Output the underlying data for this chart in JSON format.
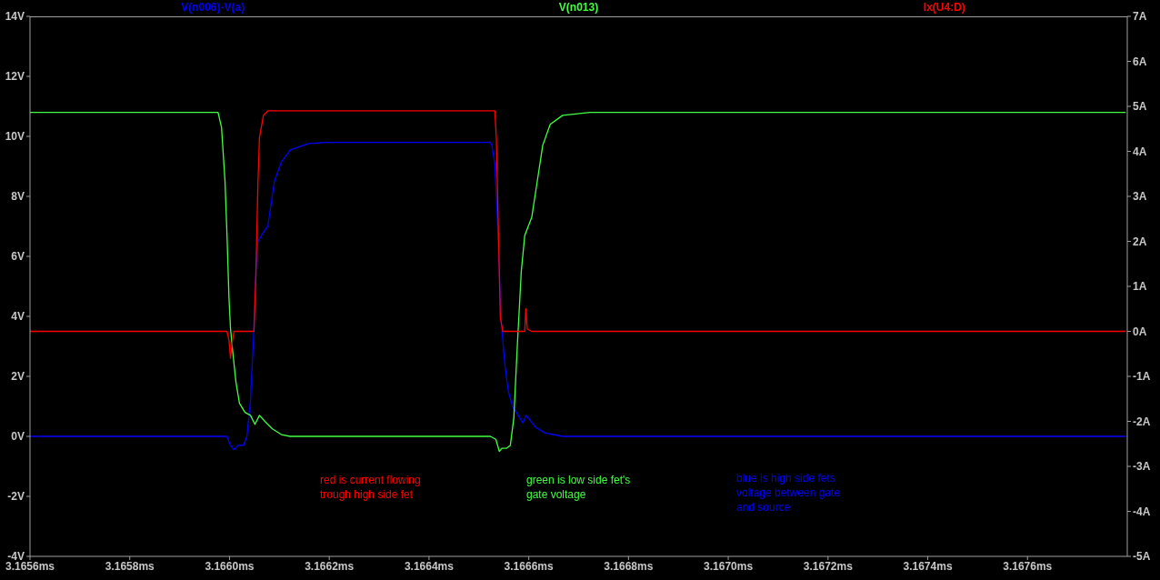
{
  "chart_data": {
    "type": "line",
    "xlim": [
      3.1656,
      3.1678
    ],
    "xticks": [
      {
        "value": 3.1656,
        "label": "3.1656ms"
      },
      {
        "value": 3.1658,
        "label": "3.1658ms"
      },
      {
        "value": 3.166,
        "label": "3.1660ms"
      },
      {
        "value": 3.1662,
        "label": "3.1662ms"
      },
      {
        "value": 3.1664,
        "label": "3.1664ms"
      },
      {
        "value": 3.1666,
        "label": "3.1666ms"
      },
      {
        "value": 3.1668,
        "label": "3.1668ms"
      },
      {
        "value": 3.167,
        "label": "3.1670ms"
      },
      {
        "value": 3.1672,
        "label": "3.1672ms"
      },
      {
        "value": 3.1674,
        "label": "3.1674ms"
      },
      {
        "value": 3.1676,
        "label": "3.1676ms"
      }
    ],
    "ylim": [
      -4,
      14
    ],
    "yticks": [
      {
        "value": -4,
        "label": "-4V"
      },
      {
        "value": -2,
        "label": "-2V"
      },
      {
        "value": 0,
        "label": "0V"
      },
      {
        "value": 2,
        "label": "2V"
      },
      {
        "value": 4,
        "label": "4V"
      },
      {
        "value": 6,
        "label": "6V"
      },
      {
        "value": 8,
        "label": "8V"
      },
      {
        "value": 10,
        "label": "10V"
      },
      {
        "value": 12,
        "label": "12V"
      },
      {
        "value": 14,
        "label": "14V"
      }
    ],
    "y2lim": [
      -5,
      7
    ],
    "y2ticks": [
      {
        "value": -5,
        "label": "-5A"
      },
      {
        "value": -4,
        "label": "-4A"
      },
      {
        "value": -3,
        "label": "-3A"
      },
      {
        "value": -2,
        "label": "-2A"
      },
      {
        "value": -1,
        "label": "-1A"
      },
      {
        "value": 0,
        "label": "0A"
      },
      {
        "value": 1,
        "label": "1A"
      },
      {
        "value": 2,
        "label": "2A"
      },
      {
        "value": 3,
        "label": "3A"
      },
      {
        "value": 4,
        "label": "4A"
      },
      {
        "value": 5,
        "label": "5A"
      },
      {
        "value": 6,
        "label": "6A"
      },
      {
        "value": 7,
        "label": "7A"
      }
    ],
    "legend": "top",
    "marker": "none",
    "line_style": "solid",
    "series": [
      {
        "name": "V(n006)-V(a)",
        "color": "#0000ff",
        "x": [
          3.1656,
          3.165995,
          3.166002,
          3.166009,
          3.166017,
          3.166028,
          3.166035,
          3.166042,
          3.166049,
          3.166053,
          3.166057,
          3.166068,
          3.166077,
          3.166082,
          3.16609,
          3.166104,
          3.166122,
          3.166159,
          3.166195,
          3.166523,
          3.166526,
          3.166532,
          3.166537,
          3.166541,
          3.166544,
          3.166552,
          3.166559,
          3.166568,
          3.166577,
          3.166588,
          3.166595,
          3.166614,
          3.166632,
          3.166668,
          3.167797
        ],
        "values": [
          0,
          0,
          -0.3,
          -0.45,
          -0.3,
          -0.3,
          0,
          1.2,
          3.6,
          5.5,
          6.5,
          6.8,
          7.0,
          7.6,
          8.5,
          9.15,
          9.55,
          9.76,
          9.8,
          9.8,
          9.7,
          9.1,
          7.3,
          5.5,
          4.0,
          2.4,
          1.5,
          0.97,
          0.76,
          0.45,
          0.7,
          0.3,
          0.12,
          0,
          0
        ]
      },
      {
        "name": "V(n013)",
        "color": "#40ff40",
        "x": [
          3.1656,
          3.165977,
          3.165984,
          3.165991,
          3.165995,
          3.165999,
          3.166002,
          3.166006,
          3.166013,
          3.16602,
          3.166031,
          3.166042,
          3.166051,
          3.16606,
          3.166071,
          3.166086,
          3.166104,
          3.166122,
          3.166523,
          3.166534,
          3.166541,
          3.166546,
          3.166555,
          3.166563,
          3.16657,
          3.166577,
          3.166585,
          3.166592,
          3.166599,
          3.166606,
          3.166617,
          3.166628,
          3.166643,
          3.166668,
          3.166723,
          3.167797
        ],
        "values": [
          10.8,
          10.8,
          10.3,
          8.5,
          6.7,
          4.6,
          3.6,
          2.9,
          1.8,
          1.1,
          0.8,
          0.7,
          0.4,
          0.7,
          0.5,
          0.25,
          0.06,
          0,
          0,
          -0.1,
          -0.5,
          -0.4,
          -0.4,
          -0.3,
          0.6,
          3.0,
          5.5,
          6.7,
          7.0,
          7.3,
          8.5,
          9.7,
          10.4,
          10.7,
          10.8,
          10.8
        ]
      },
      {
        "name": "Ix(U4:D)",
        "color": "#ff0000",
        "axis": "y2",
        "x": [
          3.1656,
          3.165995,
          3.165999,
          3.166002,
          3.166006,
          3.166009,
          3.166049,
          3.166053,
          3.166057,
          3.16606,
          3.166068,
          3.166077,
          3.166532,
          3.166535,
          3.166539,
          3.166543,
          3.166548,
          3.166592,
          3.166594,
          3.166597,
          3.166606,
          3.167797
        ],
        "values": [
          0,
          0,
          -0.2,
          -0.6,
          -0.2,
          0,
          0,
          1.3,
          3.3,
          4.3,
          4.8,
          4.9,
          4.9,
          4.3,
          2.3,
          0.3,
          0,
          0,
          0.5,
          0.05,
          0,
          0
        ]
      }
    ],
    "annotations": [
      "red is current flowing\ntrough high side fet",
      "green is low side fet's\ngate voltage",
      "blue is high side fets\nvoltage between gate\nand source"
    ]
  }
}
